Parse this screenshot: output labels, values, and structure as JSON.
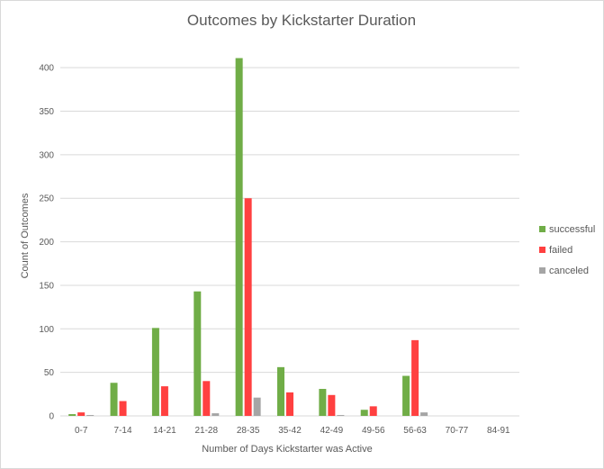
{
  "chart_data": {
    "type": "bar",
    "title": "Outcomes by Kickstarter Duration",
    "xlabel": "Number  of Days Kickstarter was Active",
    "ylabel": "Count of Outcomes",
    "ylim": [
      0,
      425
    ],
    "yticks": [
      0,
      50,
      100,
      150,
      200,
      250,
      300,
      350,
      400
    ],
    "grid": true,
    "legend_position": "right",
    "categories": [
      "0-7",
      "7-14",
      "14-21",
      "21-28",
      "28-35",
      "35-42",
      "42-49",
      "49-56",
      "56-63",
      "70-77",
      "84-91"
    ],
    "series": [
      {
        "name": "successful",
        "color": "#70ad47",
        "values": [
          2,
          38,
          101,
          143,
          411,
          56,
          31,
          7,
          46,
          0,
          0
        ]
      },
      {
        "name": "failed",
        "color": "#ff4040",
        "values": [
          4,
          17,
          34,
          40,
          250,
          27,
          24,
          11,
          87,
          0,
          0
        ]
      },
      {
        "name": "canceled",
        "color": "#a5a5a5",
        "values": [
          1,
          0,
          0,
          3,
          21,
          0,
          1,
          0,
          4,
          0,
          0
        ]
      }
    ]
  }
}
